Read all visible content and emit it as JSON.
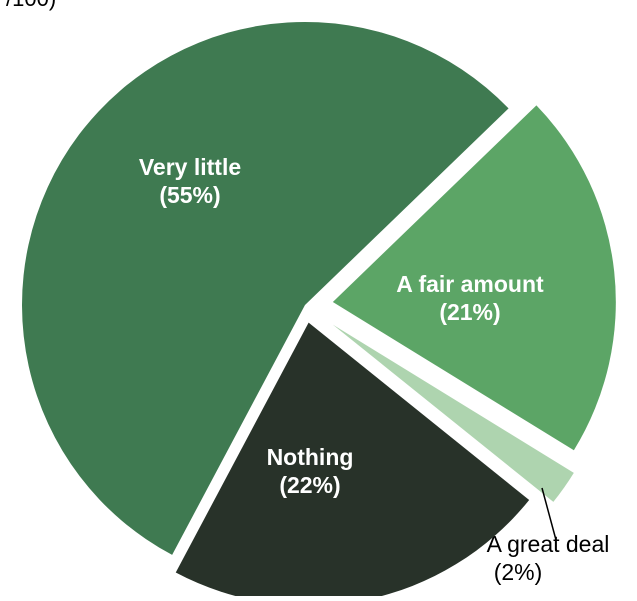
{
  "page": {
    "top_cut_text": "/100)"
  },
  "chart_data": {
    "type": "pie",
    "title": "",
    "exploded": true,
    "start_angle_deg": 46,
    "direction": "clockwise",
    "slices": [
      {
        "label": "A fair amount",
        "pct_label": "(21%)",
        "value": 21,
        "color": "#5ca566",
        "label_placement": "inside"
      },
      {
        "label": "A great deal",
        "pct_label": "(2%)",
        "value": 2,
        "color": "#aed4af",
        "label_placement": "outside"
      },
      {
        "label": "Nothing",
        "pct_label": "(22%)",
        "value": 22,
        "color": "#283229",
        "label_placement": "inside"
      },
      {
        "label": "Very little",
        "pct_label": "(55%)",
        "value": 55,
        "color": "#3f7a51",
        "label_placement": "inside"
      }
    ]
  }
}
